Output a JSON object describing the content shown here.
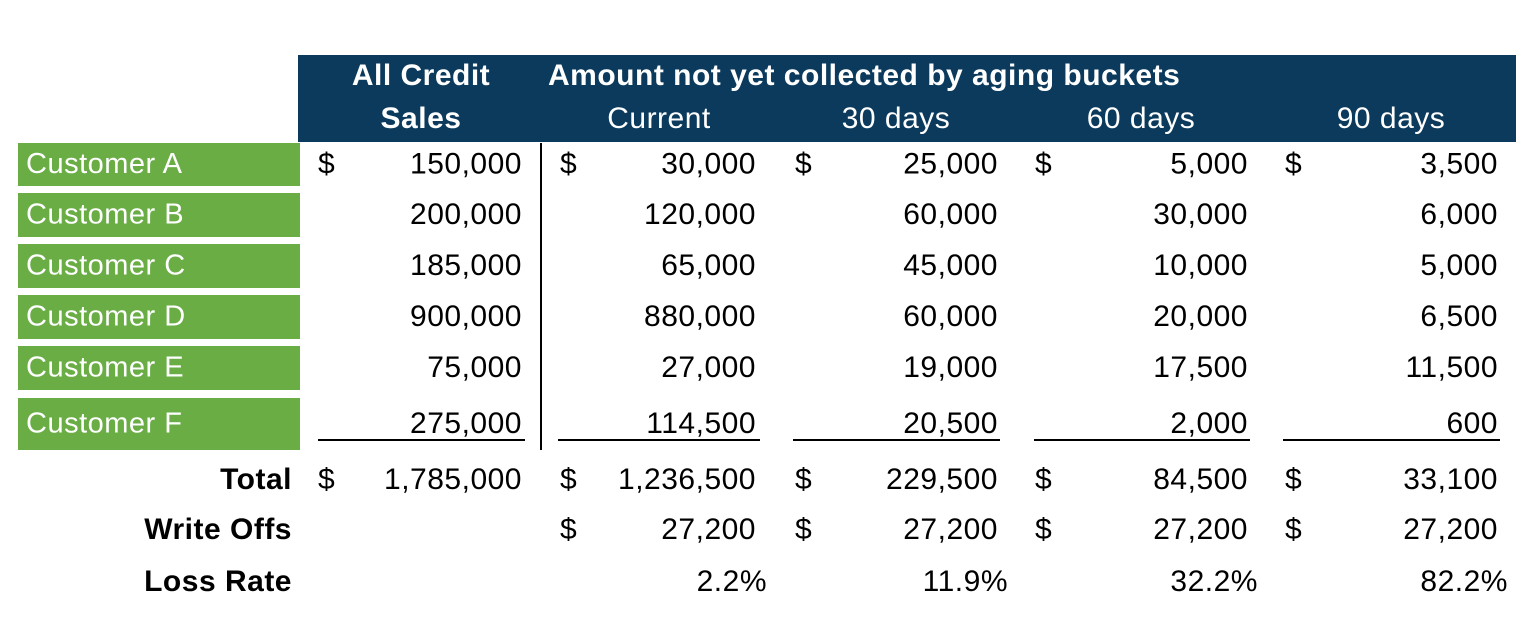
{
  "header": {
    "all_credit": "All Credit",
    "sales": "Sales",
    "group": "Amount not yet collected by aging buckets",
    "buckets": [
      "Current",
      "30 days",
      "60 days",
      "90 days"
    ]
  },
  "customers": [
    {
      "name": "Customer A",
      "cells": [
        {
          "symbol": "$",
          "amount": "150,000"
        },
        {
          "symbol": "$",
          "amount": "30,000"
        },
        {
          "symbol": "$",
          "amount": "25,000"
        },
        {
          "symbol": "$",
          "amount": "5,000"
        },
        {
          "symbol": "$",
          "amount": "3,500"
        }
      ]
    },
    {
      "name": "Customer B",
      "cells": [
        {
          "amount": "200,000"
        },
        {
          "amount": "120,000"
        },
        {
          "amount": "60,000"
        },
        {
          "amount": "30,000"
        },
        {
          "amount": "6,000"
        }
      ]
    },
    {
      "name": "Customer C",
      "cells": [
        {
          "amount": "185,000"
        },
        {
          "amount": "65,000"
        },
        {
          "amount": "45,000"
        },
        {
          "amount": "10,000"
        },
        {
          "amount": "5,000"
        }
      ]
    },
    {
      "name": "Customer D",
      "cells": [
        {
          "amount": "900,000"
        },
        {
          "amount": "880,000"
        },
        {
          "amount": "60,000"
        },
        {
          "amount": "20,000"
        },
        {
          "amount": "6,500"
        }
      ]
    },
    {
      "name": "Customer E",
      "cells": [
        {
          "amount": "75,000"
        },
        {
          "amount": "27,000"
        },
        {
          "amount": "19,000"
        },
        {
          "amount": "17,500"
        },
        {
          "amount": "11,500"
        }
      ]
    },
    {
      "name": "Customer F",
      "cells": [
        {
          "amount": "275,000"
        },
        {
          "amount": "114,500"
        },
        {
          "amount": "20,500"
        },
        {
          "amount": "2,000"
        },
        {
          "amount": "600"
        }
      ]
    }
  ],
  "summary": [
    {
      "label": "Total",
      "cells": [
        {
          "symbol": "$",
          "amount": "1,785,000"
        },
        {
          "symbol": "$",
          "amount": "1,236,500"
        },
        {
          "symbol": "$",
          "amount": "229,500"
        },
        {
          "symbol": "$",
          "amount": "84,500"
        },
        {
          "symbol": "$",
          "amount": "33,100"
        }
      ]
    },
    {
      "label": "Write Offs",
      "buckets": [
        {
          "symbol": "$",
          "amount": "27,200"
        },
        {
          "symbol": "$",
          "amount": "27,200"
        },
        {
          "symbol": "$",
          "amount": "27,200"
        },
        {
          "symbol": "$",
          "amount": "27,200"
        }
      ]
    },
    {
      "label": "Loss Rate",
      "rates": [
        "2.2%",
        "11.9%",
        "32.2%",
        "82.2%"
      ]
    }
  ]
}
